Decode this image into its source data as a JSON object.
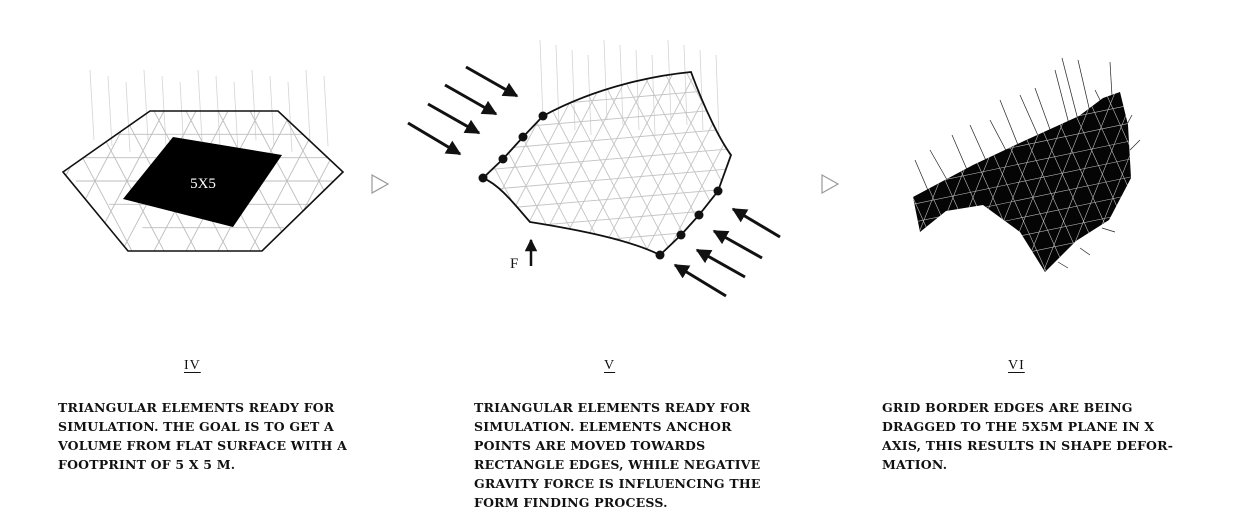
{
  "steps": [
    {
      "numeral": "IV",
      "footprint_label": "5X5",
      "lines": [
        "TRIANGULAR ELEMENTS READY FOR",
        "SIMULATION. THE GOAL IS TO GET A",
        "VOLUME FROM FLAT SURFACE WITH A",
        "FOOTPRINT OF  5 X 5 M."
      ]
    },
    {
      "numeral": "V",
      "force_label": "F",
      "lines": [
        "TRIANGULAR ELEMENTS READY FOR",
        "SIMULATION. ELEMENTS ANCHOR",
        "POINTS ARE MOVED TOWARDS",
        "RECTANGLE EDGES, WHILE NEGATIVE",
        "GRAVITY FORCE IS INFLUENCING THE",
        "FORM FINDING PROCESS."
      ]
    },
    {
      "numeral": "VI",
      "lines": [
        "GRID BORDER EDGES ARE BEING",
        "DRAGGED TO THE 5X5M PLANE IN X",
        "AXIS, THIS RESULTS IN SHAPE DEFOR-",
        "MATION."
      ]
    }
  ],
  "separator_icon": "triangle-right-outline-icon"
}
